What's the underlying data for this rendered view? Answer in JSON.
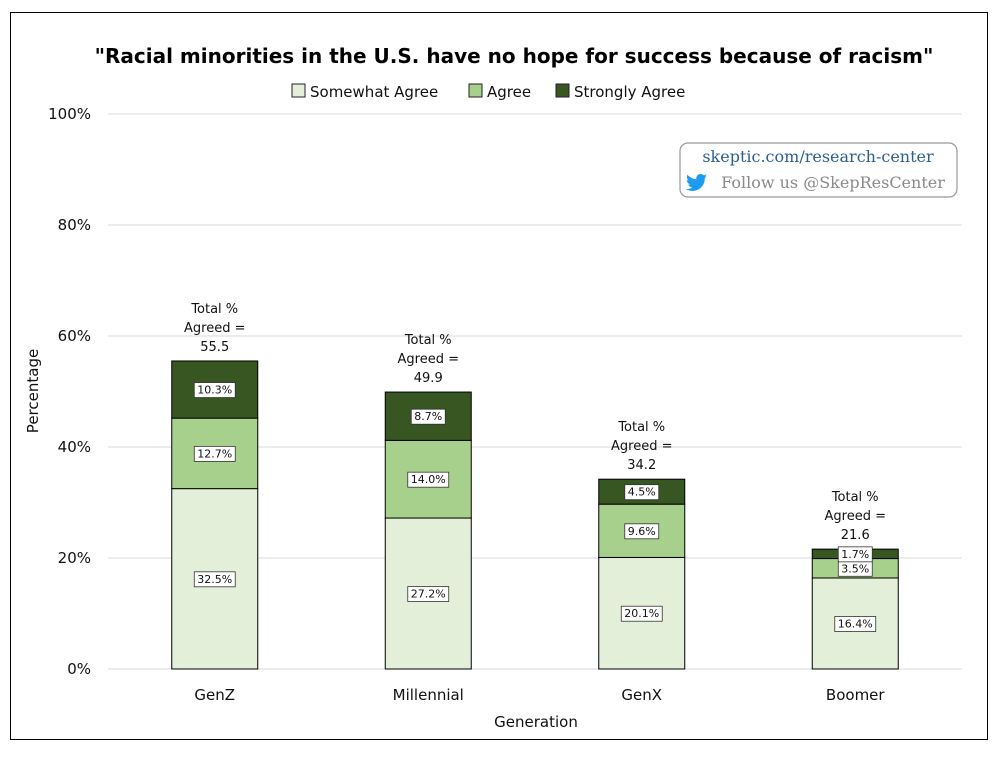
{
  "chart_data": {
    "type": "bar",
    "stacked": true,
    "title": "\"Racial minorities in the U.S. have no hope for success because of racism\"",
    "xlabel": "Generation",
    "ylabel": "Percentage",
    "ylim": [
      0,
      100
    ],
    "yticks": [
      "0%",
      "20%",
      "40%",
      "60%",
      "80%",
      "100%"
    ],
    "categories": [
      "GenZ",
      "Millennial",
      "GenX",
      "Boomer"
    ],
    "series": [
      {
        "name": "Somewhat Agree",
        "color": "#e3efd9",
        "values": [
          32.5,
          27.2,
          20.1,
          16.4
        ],
        "labels": [
          "32.5%",
          "27.2%",
          "20.1%",
          "16.4%"
        ]
      },
      {
        "name": "Agree",
        "color": "#a7d08d",
        "values": [
          12.7,
          14.0,
          9.6,
          3.5
        ],
        "labels": [
          "12.7%",
          "14.0%",
          "9.6%",
          "3.5%"
        ]
      },
      {
        "name": "Strongly Agree",
        "color": "#385622",
        "values": [
          10.3,
          8.7,
          4.5,
          1.7
        ],
        "labels": [
          "10.3%",
          "8.7%",
          "4.5%",
          "1.7%"
        ]
      }
    ],
    "totals": [
      {
        "line1": "Total %",
        "line2": "Agreed =",
        "value": "55.5"
      },
      {
        "line1": "Total %",
        "line2": "Agreed =",
        "value": "49.9"
      },
      {
        "line1": "Total %",
        "line2": "Agreed =",
        "value": "34.2"
      },
      {
        "line1": "Total %",
        "line2": "Agreed =",
        "value": "21.6"
      }
    ],
    "legend_position": "top-center",
    "grid": true
  },
  "watermark": {
    "url": "skeptic.com/research-center",
    "follow": "Follow us @SkepResCenter",
    "icon": "twitter-bird-icon"
  }
}
